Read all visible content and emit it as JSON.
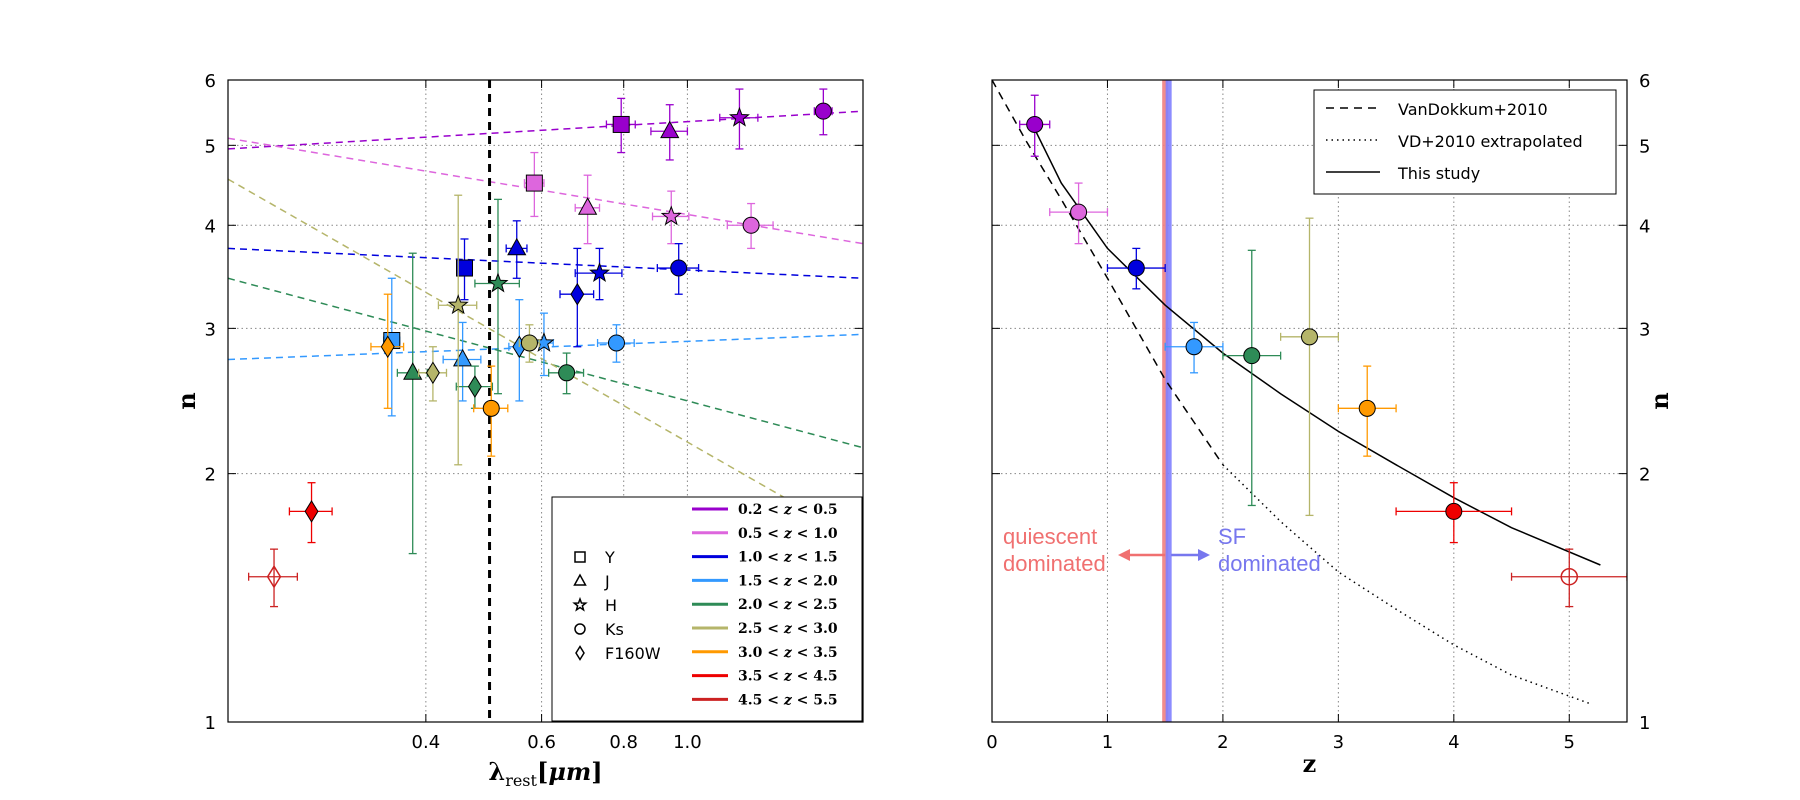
{
  "chart_data": [
    {
      "type": "scatter",
      "xlabel": "λ_rest[μm]",
      "ylabel": "n",
      "xscale": "log",
      "yscale": "log",
      "xlim": [
        0.2,
        1.85
      ],
      "ylim": [
        1,
        6
      ],
      "x_ticks": [
        0.4,
        0.6,
        0.8,
        1.0
      ],
      "x_tick_labels": [
        "0.4",
        "0.6",
        "0.8",
        "1.0"
      ],
      "y_ticks": [
        1,
        2,
        3,
        4,
        5,
        6
      ],
      "y_tick_labels": [
        "1",
        "2",
        "3",
        "4",
        "5",
        "6"
      ],
      "grid": true,
      "reference_line_x": 0.5,
      "legend_position": "lower-right",
      "marker_legend": [
        {
          "marker": "square",
          "label": "Y"
        },
        {
          "marker": "triangle",
          "label": "J"
        },
        {
          "marker": "star",
          "label": "H"
        },
        {
          "marker": "circle",
          "label": "Ks"
        },
        {
          "marker": "diamond",
          "label": "F160W"
        }
      ],
      "series": [
        {
          "name": "0.2 < z < 0.5",
          "color": "#9900cc",
          "points": [
            {
              "x": 0.793,
              "y": 5.3,
              "marker": "square",
              "xerr": 0.04,
              "yerr": 0.4
            },
            {
              "x": 0.94,
              "y": 5.2,
              "marker": "triangle",
              "xerr": 0.06,
              "yerr": 0.4
            },
            {
              "x": 1.2,
              "y": 5.4,
              "marker": "star",
              "xerr": 0.08,
              "yerr": 0.45
            },
            {
              "x": 1.61,
              "y": 5.5,
              "marker": "circle",
              "xerr": 0.05,
              "yerr": 0.35
            }
          ],
          "trend": [
            [
              0.2,
              4.95
            ],
            [
              1.85,
              5.5
            ]
          ]
        },
        {
          "name": "0.5 < z < 1.0",
          "color": "#dd66dd",
          "points": [
            {
              "x": 0.585,
              "y": 4.5,
              "marker": "square",
              "xerr": 0.02,
              "yerr": 0.4
            },
            {
              "x": 0.705,
              "y": 4.2,
              "marker": "triangle",
              "xerr": 0.03,
              "yerr": 0.4
            },
            {
              "x": 0.945,
              "y": 4.1,
              "marker": "star",
              "xerr": 0.06,
              "yerr": 0.3
            },
            {
              "x": 1.25,
              "y": 4.0,
              "marker": "circle",
              "xerr": 0.1,
              "yerr": 0.25
            }
          ],
          "trend": [
            [
              0.2,
              5.1
            ],
            [
              1.85,
              3.8
            ]
          ]
        },
        {
          "name": "1.0 < z < 1.5",
          "color": "#0000dd",
          "points": [
            {
              "x": 0.458,
              "y": 3.55,
              "marker": "square",
              "xerr": 0.01,
              "yerr": 0.3
            },
            {
              "x": 0.55,
              "y": 3.75,
              "marker": "triangle",
              "xerr": 0.02,
              "yerr": 0.3
            },
            {
              "x": 0.735,
              "y": 3.5,
              "marker": "star",
              "xerr": 0.06,
              "yerr": 0.25
            },
            {
              "x": 0.97,
              "y": 3.55,
              "marker": "circle",
              "xerr": 0.07,
              "yerr": 0.25
            },
            {
              "x": 0.68,
              "y": 3.3,
              "marker": "diamond",
              "xerr": 0.04,
              "yerr": 0.45
            }
          ],
          "trend": [
            [
              0.2,
              3.75
            ],
            [
              1.85,
              3.45
            ]
          ]
        },
        {
          "name": "1.5 < z < 2.0",
          "color": "#3399ff",
          "points": [
            {
              "x": 0.355,
              "y": 2.9,
              "marker": "square",
              "xerr": 0.01,
              "yerr": 0.55
            },
            {
              "x": 0.455,
              "y": 2.75,
              "marker": "triangle",
              "xerr": 0.03,
              "yerr": 0.3
            },
            {
              "x": 0.605,
              "y": 2.88,
              "marker": "star",
              "xerr": 0.02,
              "yerr": 0.25
            },
            {
              "x": 0.78,
              "y": 2.88,
              "marker": "circle",
              "xerr": 0.05,
              "yerr": 0.15
            },
            {
              "x": 0.555,
              "y": 2.85,
              "marker": "diamond",
              "xerr": 0.02,
              "yerr": 0.4
            }
          ],
          "trend": [
            [
              0.2,
              2.75
            ],
            [
              1.85,
              2.95
            ]
          ]
        },
        {
          "name": "2.0 < z < 2.5",
          "color": "#2e8b57",
          "points": [
            {
              "x": 0.382,
              "y": 2.65,
              "marker": "triangle",
              "xerr": 0.02,
              "yerr": 1.05
            },
            {
              "x": 0.515,
              "y": 3.4,
              "marker": "star",
              "xerr": 0.04,
              "yerr": 0.9
            },
            {
              "x": 0.655,
              "y": 2.65,
              "marker": "circle",
              "xerr": 0.04,
              "yerr": 0.15
            },
            {
              "x": 0.475,
              "y": 2.55,
              "marker": "diamond",
              "xerr": 0.03,
              "yerr": 0.15
            }
          ],
          "trend": [
            [
              0.2,
              3.45
            ],
            [
              1.85,
              2.15
            ]
          ]
        },
        {
          "name": "2.5 < z < 3.0",
          "color": "#b5b56a",
          "points": [
            {
              "x": 0.448,
              "y": 3.2,
              "marker": "star",
              "xerr": 0.03,
              "yerr": 1.15
            },
            {
              "x": 0.575,
              "y": 2.88,
              "marker": "circle",
              "xerr": 0.02,
              "yerr": 0.15
            },
            {
              "x": 0.41,
              "y": 2.65,
              "marker": "diamond",
              "xerr": 0.02,
              "yerr": 0.2
            }
          ],
          "trend": [
            [
              0.2,
              4.55
            ],
            [
              1.85,
              1.65
            ]
          ]
        },
        {
          "name": "3.0 < z < 3.5",
          "color": "#ff9900",
          "points": [
            {
              "x": 0.503,
              "y": 2.4,
              "marker": "circle",
              "xerr": 0.03,
              "yerr": 0.3
            },
            {
              "x": 0.35,
              "y": 2.85,
              "marker": "diamond",
              "xerr": 0.02,
              "yerr": 0.45
            }
          ],
          "trend": []
        },
        {
          "name": "3.5 < z < 4.5",
          "color": "#ee0000",
          "points": [
            {
              "x": 0.268,
              "y": 1.8,
              "marker": "diamond",
              "xerr": 0.02,
              "yerr": 0.15
            }
          ],
          "trend": []
        },
        {
          "name": "4.5 < z < 5.5",
          "color": "#cc2222",
          "points": [
            {
              "x": 0.235,
              "y": 1.5,
              "marker": "diamond",
              "open": true,
              "xerr": 0.02,
              "yerr": 0.12
            }
          ],
          "trend": []
        }
      ]
    },
    {
      "type": "scatter",
      "xlabel": "z",
      "ylabel": "n",
      "yscale": "log",
      "xlim": [
        0,
        5.5
      ],
      "ylim": [
        1,
        6
      ],
      "x_ticks": [
        0,
        1,
        2,
        3,
        4,
        5
      ],
      "x_tick_labels": [
        "0",
        "1",
        "2",
        "3",
        "4",
        "5"
      ],
      "y_ticks": [
        1,
        2,
        3,
        4,
        5,
        6
      ],
      "y_tick_labels": [
        "1",
        "2",
        "3",
        "4",
        "5",
        "6"
      ],
      "y_axis_side": "right",
      "grid": true,
      "legend_position": "top-right",
      "curves": [
        {
          "name": "VanDokkum+2010",
          "style": "dashed",
          "points": [
            [
              0,
              6.0
            ],
            [
              0.3,
              5.05
            ],
            [
              0.6,
              4.3
            ],
            [
              1.0,
              3.45
            ],
            [
              1.5,
              2.6
            ],
            [
              2.0,
              2.05
            ]
          ]
        },
        {
          "name": "VD+2010 extrapolated",
          "style": "dotted",
          "points": [
            [
              2.0,
              2.05
            ],
            [
              2.5,
              1.75
            ],
            [
              3.0,
              1.52
            ],
            [
              3.5,
              1.37
            ],
            [
              4.0,
              1.24
            ],
            [
              4.5,
              1.14
            ],
            [
              5.2,
              1.05
            ]
          ]
        },
        {
          "name": "This study",
          "style": "solid",
          "points": [
            [
              0.35,
              5.3
            ],
            [
              0.6,
              4.5
            ],
            [
              1.0,
              3.75
            ],
            [
              1.5,
              3.2
            ],
            [
              2.0,
              2.8
            ],
            [
              2.5,
              2.5
            ],
            [
              3.0,
              2.25
            ],
            [
              3.5,
              2.05
            ],
            [
              4.0,
              1.87
            ],
            [
              4.5,
              1.72
            ],
            [
              5.27,
              1.55
            ]
          ]
        }
      ],
      "vertical_lines": [
        {
          "x": 1.5,
          "color": "#f08080"
        },
        {
          "x": 1.53,
          "color": "#8080ff"
        }
      ],
      "annotations": [
        {
          "text": [
            "quiescent",
            "dominated"
          ],
          "color": "#f07070",
          "arrow": "left"
        },
        {
          "text": [
            "SF",
            "dominated"
          ],
          "color": "#7777ee",
          "arrow": "right"
        }
      ],
      "points": [
        {
          "x": 0.37,
          "y": 5.3,
          "xerr": 0.13,
          "yerr": 0.45,
          "color": "#9900cc"
        },
        {
          "x": 0.75,
          "y": 4.15,
          "xerr": 0.25,
          "yerr": 0.35,
          "color": "#dd66dd"
        },
        {
          "x": 1.25,
          "y": 3.55,
          "xerr": 0.25,
          "yerr": 0.2,
          "color": "#0000dd"
        },
        {
          "x": 1.75,
          "y": 2.85,
          "xerr": 0.25,
          "yerr": 0.2,
          "color": "#3399ff"
        },
        {
          "x": 2.25,
          "y": 2.78,
          "xerr": 0.25,
          "yerr": 0.95,
          "color": "#2e8b57"
        },
        {
          "x": 2.75,
          "y": 2.93,
          "xerr": 0.25,
          "yerr": 1.15,
          "color": "#b5b56a"
        },
        {
          "x": 3.25,
          "y": 2.4,
          "xerr": 0.25,
          "yerr": 0.3,
          "color": "#ff9900"
        },
        {
          "x": 4.0,
          "y": 1.8,
          "xerr": 0.5,
          "yerr": 0.15,
          "color": "#ee0000"
        },
        {
          "x": 5.0,
          "y": 1.5,
          "xerr": 0.5,
          "yerr": 0.12,
          "color": "#cc2222",
          "open": true
        }
      ]
    }
  ]
}
